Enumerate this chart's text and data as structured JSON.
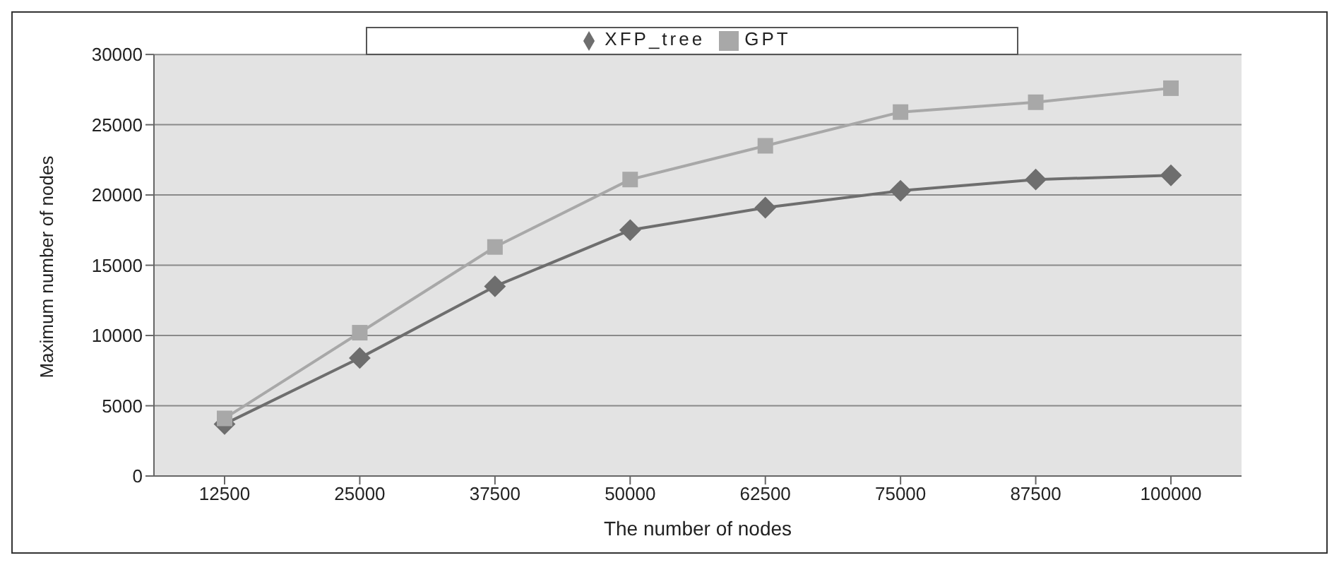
{
  "chart_data": {
    "type": "line",
    "xlabel": "The number of nodes",
    "ylabel": "Maximum number of nodes",
    "categories": [
      "12500",
      "25000",
      "37500",
      "50000",
      "62500",
      "75000",
      "87500",
      "100000"
    ],
    "series": [
      {
        "name": "XFP_tree",
        "color": "#6e6e6e",
        "marker": "diamond",
        "values": [
          3700,
          8400,
          13500,
          17500,
          19100,
          20300,
          21100,
          21400
        ]
      },
      {
        "name": "GPT",
        "color": "#a8a8a8",
        "marker": "square",
        "values": [
          4100,
          10200,
          16300,
          21100,
          23500,
          25900,
          26600,
          27600
        ]
      }
    ],
    "ylim": [
      0,
      30000
    ],
    "yticks": [
      0,
      5000,
      10000,
      15000,
      20000,
      25000,
      30000
    ],
    "grid": "y",
    "legend": "top",
    "line_style": "solid"
  }
}
